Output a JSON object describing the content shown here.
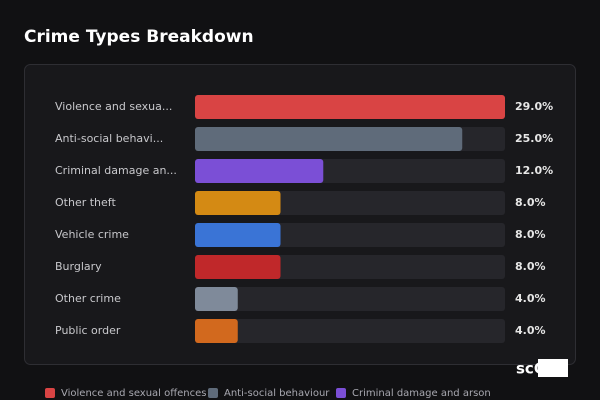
{
  "chart_data": {
    "type": "bar",
    "orientation": "horizontal",
    "title": "Crime Types Breakdown",
    "categories": [
      "Violence and sexua...",
      "Anti-social behavi...",
      "Criminal damage an...",
      "Other theft",
      "Vehicle crime",
      "Burglary",
      "Other crime",
      "Public order"
    ],
    "values": [
      29,
      25,
      12,
      8,
      8,
      8,
      4,
      4
    ],
    "value_labels": [
      "29.0%",
      "25.0%",
      "12.0%",
      "8.0%",
      "8.0%",
      "8.0%",
      "4.0%",
      "4.0%"
    ],
    "colors": [
      "#d94444",
      "#5f6b7a",
      "#7b4fd6",
      "#d48a14",
      "#3a74d6",
      "#c0282a",
      "#7f8a9a",
      "#d2691e"
    ],
    "xlim": [
      0,
      29
    ],
    "legend": [
      {
        "name": "Violence and sexual offences",
        "color": "#d94444"
      },
      {
        "name": "Anti-social behaviour",
        "color": "#5f6b7a"
      },
      {
        "name": "Criminal damage and arson",
        "color": "#7b4fd6"
      }
    ],
    "logo": "scOS"
  }
}
